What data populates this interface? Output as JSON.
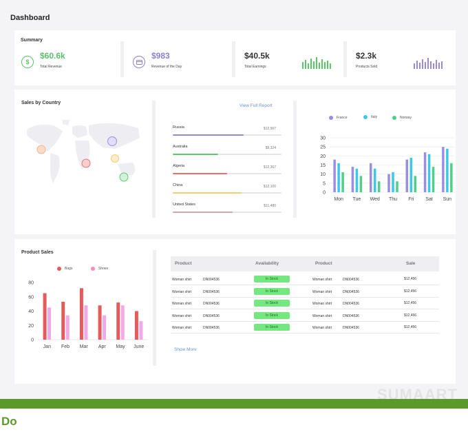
{
  "page": {
    "title": "Dashboard"
  },
  "summary": {
    "title": "Summary",
    "stats": [
      {
        "value": "$60.6k",
        "label": "Total Revenue",
        "color": "#5cbf6a",
        "icon": "dollar-icon"
      },
      {
        "value": "$983",
        "label": "Revenue of the Day",
        "color": "#8d7fd6",
        "icon": "card-icon"
      },
      {
        "value": "$40.5k",
        "label": "Total Earnings",
        "color": "#333333",
        "spark_color": "#5cc56a"
      },
      {
        "value": "$2.3k",
        "label": "Products Sold",
        "color": "#333333",
        "spark_color": "#9a88dd"
      }
    ]
  },
  "sales_by_country": {
    "title": "Sales by Country",
    "link": "View Full Report",
    "countries": [
      {
        "name": "Russia",
        "value": "$12,567",
        "fill": 0.65,
        "color": "#9a86e0"
      },
      {
        "name": "Australia",
        "value": "$9,324",
        "fill": 0.42,
        "color": "#5cc96f"
      },
      {
        "name": "Algeria",
        "value": "$12,367",
        "fill": 0.5,
        "color": "#e8706a"
      },
      {
        "name": "China",
        "value": "$12,100",
        "fill": 0.63,
        "color": "#f0cf73"
      },
      {
        "name": "United States",
        "value": "$11,480",
        "fill": 0.55,
        "color": "#d9a3a0"
      }
    ]
  },
  "chart_data": [
    {
      "type": "bar",
      "categories": [
        "Mon",
        "Tue",
        "Wed",
        "Thu",
        "Fri",
        "Sat",
        "Sun"
      ],
      "series": [
        {
          "name": "France",
          "values": [
            18,
            14,
            16,
            10,
            18,
            22,
            25
          ],
          "color": "#9b8ee0"
        },
        {
          "name": "Italy",
          "values": [
            16,
            13,
            13,
            11,
            19,
            21,
            24
          ],
          "color": "#3dc7e8"
        },
        {
          "name": "Norway",
          "values": [
            11,
            9,
            6,
            6,
            9,
            14,
            16
          ],
          "color": "#4fd08a"
        }
      ],
      "ylim": [
        0,
        30
      ],
      "yticks": [
        0,
        5,
        10,
        15,
        20,
        25,
        30
      ],
      "legend": "top"
    },
    {
      "type": "bar",
      "title": "Product Sales",
      "categories": [
        "Jan",
        "Feb",
        "Mar",
        "Apr",
        "May",
        "June"
      ],
      "series": [
        {
          "name": "Bags",
          "values": [
            65,
            53,
            72,
            48,
            52,
            40
          ],
          "color": "#e55b5b"
        },
        {
          "name": "Shoes",
          "values": [
            45,
            34,
            48,
            34,
            48,
            26
          ],
          "color": "#f2a9e6"
        }
      ],
      "ylim": [
        0,
        80
      ],
      "yticks": [
        0,
        20,
        40,
        60,
        80
      ],
      "legend": "top"
    }
  ],
  "product_sales": {
    "title": "Product Sales",
    "headers": [
      "Product",
      "Availability",
      "Product",
      "Sale"
    ],
    "rows": [
      {
        "product": "Woman shirt",
        "code": "DN004536",
        "status": "In Stock",
        "product2": "Woman shirt",
        "code2": "DN004536",
        "sale": "$12,456"
      },
      {
        "product": "Woman shirt",
        "code": "DN004536",
        "status": "In Stock",
        "product2": "Woman shirt",
        "code2": "DN004536",
        "sale": "$12,456"
      },
      {
        "product": "Woman shirt",
        "code": "DN004536",
        "status": "In Stock",
        "product2": "Woman shirt",
        "code2": "DN004536",
        "sale": "$12,456"
      },
      {
        "product": "Woman shirt",
        "code": "DN004536",
        "status": "In Stock",
        "product2": "Woman shirt",
        "code2": "DN004536",
        "sale": "$12,456"
      },
      {
        "product": "Woman shirt",
        "code": "DN004536",
        "status": "In Stock",
        "product2": "Woman shirt",
        "code2": "DN004536",
        "sale": "$12,456"
      }
    ],
    "show_more": "Show More"
  },
  "watermark": "SUMAART",
  "footer": {
    "label": "Do"
  }
}
